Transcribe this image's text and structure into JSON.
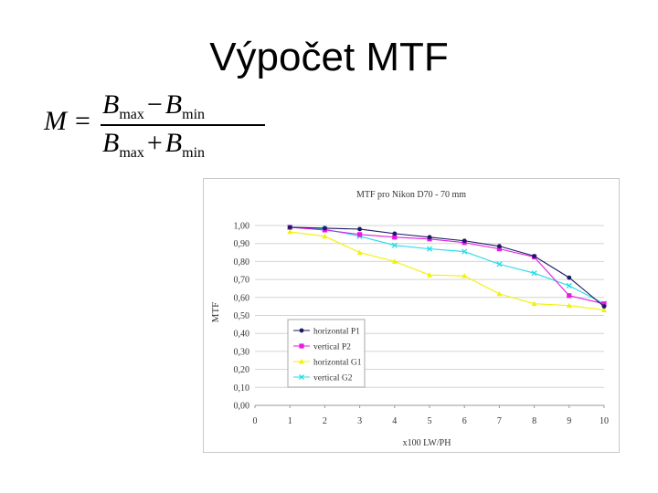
{
  "slide": {
    "title": "Výpočet MTF",
    "formula": {
      "lhs": "M",
      "equals": "=",
      "numerator": {
        "b1": "B",
        "s1": "max",
        "op": "−",
        "b2": "B",
        "s2": "min"
      },
      "denominator": {
        "b1": "B",
        "s1": "max",
        "op": "+",
        "b2": "B",
        "s2": "min"
      }
    }
  },
  "colors": {
    "horizontal P1": "#1a1a66",
    "vertical P2": "#e619e6",
    "horizontal G1": "#f2f200",
    "vertical G2": "#22dde8"
  },
  "chart_data": {
    "type": "line",
    "title": "MTF pro Nikon D70 - 70 mm",
    "xlabel": "x100 LW/PH",
    "ylabel": "MTF",
    "xlim": [
      0,
      10
    ],
    "ylim": [
      0,
      1
    ],
    "grid": true,
    "legend": "bottom-left",
    "x_ticks": [
      "0",
      "1",
      "2",
      "3",
      "4",
      "5",
      "6",
      "7",
      "8",
      "9",
      "10"
    ],
    "y_ticks": [
      "0,00",
      "0,10",
      "0,20",
      "0,30",
      "0,40",
      "0,50",
      "0,60",
      "0,70",
      "0,80",
      "0,90",
      "1,00"
    ],
    "x": [
      1,
      2,
      3,
      4,
      5,
      6,
      7,
      8,
      9,
      10
    ],
    "series": [
      {
        "name": "horizontal P1",
        "marker": "dot",
        "values": [
          0.99,
          0.985,
          0.98,
          0.955,
          0.935,
          0.915,
          0.885,
          0.83,
          0.71,
          0.55
        ]
      },
      {
        "name": "vertical P2",
        "marker": "square",
        "values": [
          0.99,
          0.975,
          0.95,
          0.935,
          0.925,
          0.905,
          0.87,
          0.825,
          0.61,
          0.565
        ]
      },
      {
        "name": "horizontal G1",
        "marker": "triangle",
        "values": [
          0.965,
          0.94,
          0.85,
          0.8,
          0.725,
          0.72,
          0.62,
          0.565,
          0.555,
          0.53
        ]
      },
      {
        "name": "vertical G2",
        "marker": "x",
        "values": [
          0.99,
          0.98,
          0.94,
          0.89,
          0.87,
          0.855,
          0.785,
          0.735,
          0.665,
          0.565
        ]
      }
    ]
  }
}
